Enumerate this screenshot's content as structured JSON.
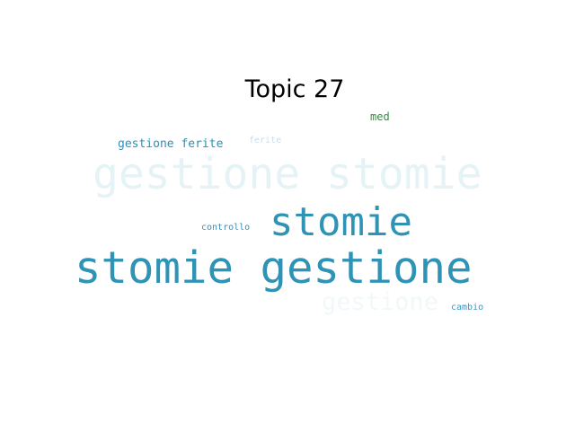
{
  "title": "Topic 27",
  "words": [
    {
      "text": "stomie gestione",
      "color": "#2f93b6"
    },
    {
      "text": "gestione stomie",
      "color": "#e6f3f6"
    },
    {
      "text": "stomie",
      "color": "#2f93b6"
    },
    {
      "text": "gestione",
      "color": "#f2f8fa"
    },
    {
      "text": "gestione ferite",
      "color": "#2f8fb6"
    },
    {
      "text": "med",
      "color": "#2f8f3f"
    },
    {
      "text": "ferite",
      "color": "#c4dfe8"
    },
    {
      "text": "controllo",
      "color": "#3a8fb6"
    },
    {
      "text": "cambio",
      "color": "#3a96c0"
    }
  ]
}
